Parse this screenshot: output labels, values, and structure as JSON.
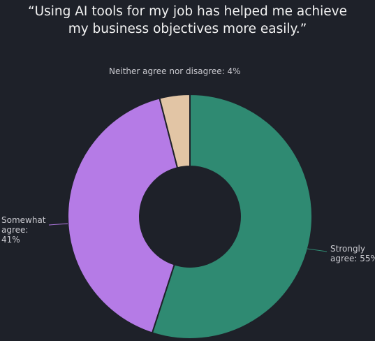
{
  "chart_data": {
    "type": "donut",
    "title": "“Using AI tools for my job has helped me achieve my business objectives more easily.”",
    "labels": [
      "Strongly agree: 55%",
      "Somewhat agree: 41%",
      "Neither agree nor disagree: 4%"
    ],
    "values": [
      55,
      41,
      4
    ],
    "colors": [
      "#2f8a72",
      "#b57be6",
      "#e2c5a5"
    ]
  }
}
